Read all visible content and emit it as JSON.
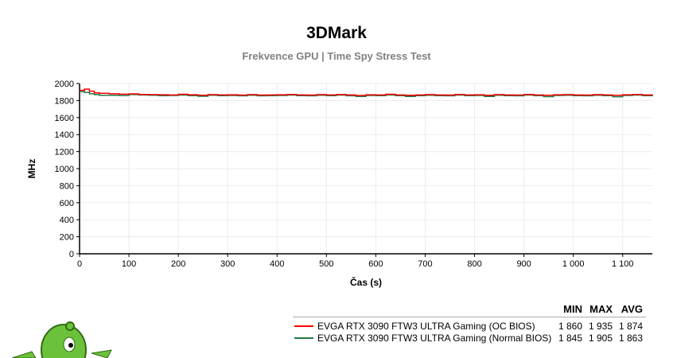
{
  "chart_data": {
    "type": "line",
    "title": "3DMark",
    "subtitle": "Frekvence GPU | Time Spy Stress Test",
    "xlabel": "Čas (s)",
    "ylabel": "MHz",
    "xlim": [
      0,
      1160
    ],
    "ylim": [
      0,
      2000
    ],
    "xticks": [
      0,
      100,
      200,
      300,
      400,
      500,
      600,
      700,
      800,
      900,
      1000,
      1100
    ],
    "xtick_labels": [
      "0",
      "100",
      "200",
      "300",
      "400",
      "500",
      "600",
      "700",
      "800",
      "900",
      "1 000",
      "1 100"
    ],
    "yticks": [
      0,
      200,
      400,
      600,
      800,
      1000,
      1200,
      1400,
      1600,
      1800,
      2000
    ],
    "ytick_labels": [
      "0",
      "200",
      "400",
      "600",
      "800",
      "1000",
      "1200",
      "1400",
      "1600",
      "1800",
      "2000"
    ],
    "grid": true,
    "legend_placement": "bottom-right",
    "x": [
      0,
      10,
      20,
      30,
      40,
      60,
      80,
      100,
      120,
      140,
      160,
      180,
      200,
      220,
      240,
      260,
      280,
      300,
      320,
      340,
      360,
      380,
      400,
      420,
      440,
      460,
      480,
      500,
      520,
      540,
      560,
      580,
      600,
      620,
      640,
      660,
      680,
      700,
      720,
      740,
      760,
      780,
      800,
      820,
      840,
      860,
      880,
      900,
      920,
      940,
      960,
      980,
      1000,
      1020,
      1040,
      1060,
      1080,
      1100,
      1120,
      1140,
      1160
    ],
    "series": [
      {
        "name": "EVGA RTX 3090 FTW3 ULTRA Gaming (OC BIOS)",
        "color": "#ff0000",
        "values": [
          1920,
          1935,
          1910,
          1890,
          1885,
          1880,
          1875,
          1878,
          1872,
          1870,
          1868,
          1866,
          1874,
          1868,
          1862,
          1870,
          1866,
          1868,
          1865,
          1870,
          1864,
          1866,
          1868,
          1872,
          1866,
          1864,
          1870,
          1866,
          1872,
          1866,
          1860,
          1868,
          1866,
          1874,
          1866,
          1862,
          1866,
          1870,
          1866,
          1864,
          1872,
          1866,
          1868,
          1862,
          1870,
          1866,
          1864,
          1872,
          1866,
          1862,
          1868,
          1870,
          1866,
          1864,
          1870,
          1866,
          1862,
          1868,
          1872,
          1866,
          1874
        ]
      },
      {
        "name": "EVGA RTX 3090 FTW3 ULTRA Gaming (Normal BIOS)",
        "color": "#1e7a46",
        "values": [
          1905,
          1895,
          1880,
          1870,
          1862,
          1862,
          1860,
          1870,
          1866,
          1862,
          1858,
          1860,
          1864,
          1858,
          1850,
          1862,
          1858,
          1860,
          1856,
          1862,
          1856,
          1858,
          1860,
          1865,
          1858,
          1856,
          1862,
          1858,
          1864,
          1856,
          1848,
          1860,
          1858,
          1866,
          1858,
          1848,
          1858,
          1862,
          1858,
          1856,
          1864,
          1858,
          1860,
          1848,
          1862,
          1858,
          1856,
          1864,
          1858,
          1846,
          1860,
          1862,
          1858,
          1856,
          1862,
          1858,
          1845,
          1860,
          1864,
          1858,
          1868
        ]
      }
    ]
  },
  "legend": {
    "headers": [
      "MIN",
      "MAX",
      "AVG"
    ],
    "rows": [
      {
        "name": "EVGA RTX 3090 FTW3 ULTRA Gaming (OC BIOS)",
        "min": "1 860",
        "max": "1 935",
        "avg": "1 874",
        "color": "#ff0000"
      },
      {
        "name": "EVGA RTX 3090 FTW3 ULTRA Gaming (Normal BIOS)",
        "min": "1 845",
        "max": "1 905",
        "avg": "1 863",
        "color": "#1e7a46"
      }
    ]
  },
  "mascot_icon": "green-alien-mascot"
}
